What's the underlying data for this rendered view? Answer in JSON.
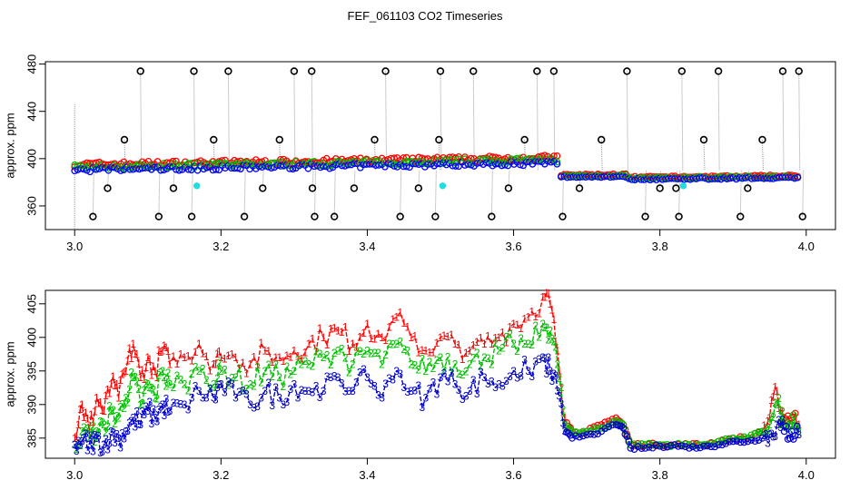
{
  "title": "FEF_061103  CO2 Timeseries",
  "colors": {
    "raw": "#000000",
    "raw_line": "#9a9a9a",
    "series1": "#ff0000",
    "series2": "#00c000",
    "series3": "#0000ff",
    "highlight": "#22dddd"
  },
  "chart_data": [
    {
      "type": "scatter",
      "title": "FEF_061103  CO2 Timeseries",
      "xlabel": "",
      "ylabel": "approx. ppm",
      "xlim": [
        2.96,
        4.04
      ],
      "ylim": [
        340,
        482
      ],
      "xticks": [
        3.0,
        3.2,
        3.4,
        3.6,
        3.8,
        4.0
      ],
      "xtick_labels": [
        "3.0",
        "3.2",
        "3.4",
        "3.6",
        "3.8",
        "4.0"
      ],
      "yticks": [
        360,
        400,
        440,
        480
      ],
      "ytick_labels": [
        "360",
        "400",
        "440",
        "480"
      ],
      "grid": false,
      "segments": [
        {
          "x0": 3.0,
          "x1": 3.66,
          "base": 392,
          "rise": 6
        },
        {
          "x0": 3.665,
          "x1": 3.99,
          "base": 385,
          "rise": 2
        }
      ],
      "outliers_high_x": [
        3.09,
        3.163,
        3.21,
        3.3,
        3.324,
        3.425,
        3.5,
        3.545,
        3.632,
        3.655,
        3.755,
        3.83,
        3.88,
        3.968,
        3.99
      ],
      "outliers_high_y": 474,
      "outliers_mid_x": [
        3.068,
        3.19,
        3.28,
        3.41,
        3.498,
        3.615,
        3.72,
        3.86,
        3.94
      ],
      "outliers_mid_y": 416,
      "outliers_low_x": [
        3.025,
        3.115,
        3.16,
        3.232,
        3.328,
        3.355,
        3.445,
        3.493,
        3.57,
        3.667,
        3.78,
        3.826,
        3.91,
        3.995
      ],
      "outliers_low_y": 351,
      "outliers_lowmid_x": [
        3.045,
        3.135,
        3.257,
        3.325,
        3.382,
        3.47,
        3.593,
        3.69,
        3.8,
        3.822,
        3.92
      ],
      "outliers_lowmid_y": 375,
      "highlight_points": [
        {
          "x": 3.167,
          "y": 377
        },
        {
          "x": 3.503,
          "y": 377
        },
        {
          "x": 3.832,
          "y": 377
        }
      ]
    },
    {
      "type": "line",
      "xlabel": "",
      "ylabel": "approx. ppm",
      "xlim": [
        2.96,
        4.04
      ],
      "ylim": [
        382,
        407
      ],
      "xticks": [
        3.0,
        3.2,
        3.4,
        3.6,
        3.8,
        4.0
      ],
      "xtick_labels": [
        "3.0",
        "3.2",
        "3.4",
        "3.6",
        "3.8",
        "4.0"
      ],
      "yticks": [
        385,
        390,
        395,
        400,
        405
      ],
      "ytick_labels": [
        "385",
        "390",
        "395",
        "400",
        "405"
      ],
      "grid": false,
      "series": [
        {
          "name": "1",
          "color": "#ff0000",
          "points": [
            [
              3.0,
              385
            ],
            [
              3.01,
              390
            ],
            [
              3.02,
              386
            ],
            [
              3.03,
              391
            ],
            [
              3.04,
              389
            ],
            [
              3.05,
              393
            ],
            [
              3.06,
              391
            ],
            [
              3.07,
              395
            ],
            [
              3.08,
              399
            ],
            [
              3.09,
              394
            ],
            [
              3.1,
              397
            ],
            [
              3.11,
              395
            ],
            [
              3.12,
              398
            ],
            [
              3.13,
              396
            ],
            [
              3.15,
              397
            ],
            [
              3.17,
              399
            ],
            [
              3.19,
              396
            ],
            [
              3.2,
              397
            ],
            [
              3.22,
              397
            ],
            [
              3.24,
              396
            ],
            [
              3.26,
              398
            ],
            [
              3.28,
              397
            ],
            [
              3.3,
              398
            ],
            [
              3.32,
              399
            ],
            [
              3.34,
              400
            ],
            [
              3.36,
              401
            ],
            [
              3.38,
              399
            ],
            [
              3.4,
              402
            ],
            [
              3.42,
              400
            ],
            [
              3.44,
              403
            ],
            [
              3.46,
              400
            ],
            [
              3.48,
              398
            ],
            [
              3.5,
              400
            ],
            [
              3.52,
              399
            ],
            [
              3.54,
              398
            ],
            [
              3.56,
              399
            ],
            [
              3.58,
              400
            ],
            [
              3.6,
              402
            ],
            [
              3.62,
              403
            ],
            [
              3.64,
              406
            ],
            [
              3.65,
              405
            ],
            [
              3.66,
              398
            ],
            [
              3.67,
              388
            ],
            [
              3.68,
              386
            ],
            [
              3.7,
              386
            ],
            [
              3.72,
              387
            ],
            [
              3.74,
              388
            ],
            [
              3.75,
              387
            ],
            [
              3.76,
              384
            ],
            [
              3.78,
              384
            ],
            [
              3.8,
              384
            ],
            [
              3.82,
              384
            ],
            [
              3.84,
              384
            ],
            [
              3.86,
              384
            ],
            [
              3.88,
              384.5
            ],
            [
              3.9,
              385
            ],
            [
              3.92,
              385
            ],
            [
              3.94,
              386
            ],
            [
              3.95,
              388
            ],
            [
              3.96,
              392
            ],
            [
              3.97,
              388
            ],
            [
              3.98,
              388
            ],
            [
              3.99,
              387
            ]
          ]
        },
        {
          "name": "2",
          "color": "#00c000",
          "points": [
            [
              3.0,
              384
            ],
            [
              3.01,
              386
            ],
            [
              3.02,
              385
            ],
            [
              3.03,
              386
            ],
            [
              3.04,
              387
            ],
            [
              3.05,
              389
            ],
            [
              3.06,
              388
            ],
            [
              3.07,
              391
            ],
            [
              3.08,
              394
            ],
            [
              3.09,
              390
            ],
            [
              3.1,
              393
            ],
            [
              3.11,
              391
            ],
            [
              3.12,
              395
            ],
            [
              3.13,
              393
            ],
            [
              3.15,
              393
            ],
            [
              3.17,
              395
            ],
            [
              3.19,
              393
            ],
            [
              3.2,
              395
            ],
            [
              3.22,
              394
            ],
            [
              3.24,
              393
            ],
            [
              3.26,
              395
            ],
            [
              3.28,
              394
            ],
            [
              3.3,
              395
            ],
            [
              3.32,
              396
            ],
            [
              3.34,
              397
            ],
            [
              3.36,
              398
            ],
            [
              3.38,
              396
            ],
            [
              3.4,
              398
            ],
            [
              3.42,
              396
            ],
            [
              3.44,
              399
            ],
            [
              3.46,
              396
            ],
            [
              3.48,
              395
            ],
            [
              3.5,
              397
            ],
            [
              3.52,
              396
            ],
            [
              3.54,
              396
            ],
            [
              3.56,
              397
            ],
            [
              3.58,
              398
            ],
            [
              3.6,
              399
            ],
            [
              3.62,
              399
            ],
            [
              3.64,
              402
            ],
            [
              3.65,
              401
            ],
            [
              3.66,
              396
            ],
            [
              3.67,
              387
            ],
            [
              3.68,
              386
            ],
            [
              3.7,
              386
            ],
            [
              3.72,
              386.5
            ],
            [
              3.74,
              387.5
            ],
            [
              3.75,
              387
            ],
            [
              3.76,
              384
            ],
            [
              3.78,
              384
            ],
            [
              3.8,
              384
            ],
            [
              3.82,
              384
            ],
            [
              3.84,
              384
            ],
            [
              3.86,
              384
            ],
            [
              3.88,
              384.5
            ],
            [
              3.9,
              385
            ],
            [
              3.92,
              385
            ],
            [
              3.94,
              386
            ],
            [
              3.95,
              387
            ],
            [
              3.96,
              390
            ],
            [
              3.97,
              387
            ],
            [
              3.98,
              387
            ],
            [
              3.99,
              386
            ]
          ]
        },
        {
          "name": "3",
          "color": "#0000cc",
          "points": [
            [
              3.0,
              384
            ],
            [
              3.01,
              384.5
            ],
            [
              3.02,
              384
            ],
            [
              3.03,
              385
            ],
            [
              3.04,
              384
            ],
            [
              3.05,
              386
            ],
            [
              3.06,
              385
            ],
            [
              3.07,
              386
            ],
            [
              3.08,
              388
            ],
            [
              3.09,
              387
            ],
            [
              3.1,
              389
            ],
            [
              3.11,
              388
            ],
            [
              3.12,
              390
            ],
            [
              3.13,
              389
            ],
            [
              3.15,
              390
            ],
            [
              3.17,
              392
            ],
            [
              3.19,
              391
            ],
            [
              3.2,
              393
            ],
            [
              3.22,
              391
            ],
            [
              3.24,
              390
            ],
            [
              3.26,
              392
            ],
            [
              3.28,
              391
            ],
            [
              3.3,
              393
            ],
            [
              3.32,
              392
            ],
            [
              3.34,
              392
            ],
            [
              3.36,
              394
            ],
            [
              3.38,
              392
            ],
            [
              3.4,
              394
            ],
            [
              3.42,
              391
            ],
            [
              3.44,
              395
            ],
            [
              3.46,
              392
            ],
            [
              3.48,
              391
            ],
            [
              3.5,
              394
            ],
            [
              3.52,
              393
            ],
            [
              3.54,
              392
            ],
            [
              3.56,
              394
            ],
            [
              3.58,
              393
            ],
            [
              3.6,
              395
            ],
            [
              3.62,
              395
            ],
            [
              3.64,
              397
            ],
            [
              3.65,
              395
            ],
            [
              3.66,
              392
            ],
            [
              3.67,
              386
            ],
            [
              3.68,
              385
            ],
            [
              3.7,
              385.5
            ],
            [
              3.72,
              386
            ],
            [
              3.74,
              387
            ],
            [
              3.75,
              386.5
            ],
            [
              3.76,
              383.5
            ],
            [
              3.78,
              383.5
            ],
            [
              3.8,
              383.8
            ],
            [
              3.82,
              384
            ],
            [
              3.84,
              383.5
            ],
            [
              3.86,
              383.8
            ],
            [
              3.88,
              384
            ],
            [
              3.9,
              384.5
            ],
            [
              3.92,
              384.5
            ],
            [
              3.94,
              385
            ],
            [
              3.95,
              385.5
            ],
            [
              3.96,
              387
            ],
            [
              3.97,
              386
            ],
            [
              3.98,
              386
            ],
            [
              3.99,
              385.5
            ]
          ]
        }
      ]
    }
  ]
}
